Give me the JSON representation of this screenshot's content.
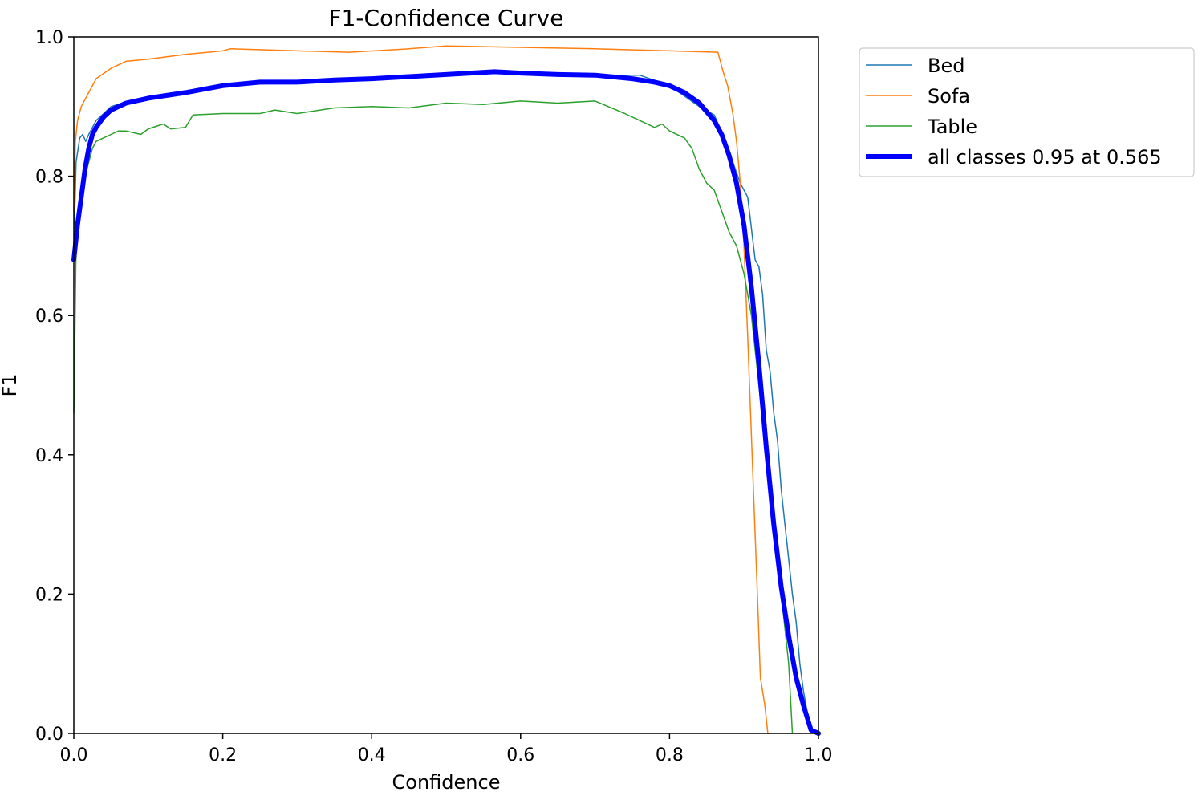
{
  "chart_data": {
    "type": "line",
    "title": "F1-Confidence Curve",
    "xlabel": "Confidence",
    "ylabel": "F1",
    "xlim": [
      0.0,
      1.0
    ],
    "ylim": [
      0.0,
      1.0
    ],
    "xticks": [
      "0.0",
      "0.2",
      "0.4",
      "0.6",
      "0.8",
      "1.0"
    ],
    "yticks": [
      "0.0",
      "0.2",
      "0.4",
      "0.6",
      "0.8",
      "1.0"
    ],
    "grid": false,
    "legend_position": "outside-top-right",
    "series": [
      {
        "name": "Bed",
        "color": "#1f77b4",
        "width": 1.5,
        "x": [
          0.0,
          0.003,
          0.008,
          0.012,
          0.016,
          0.02,
          0.03,
          0.05,
          0.08,
          0.1,
          0.15,
          0.2,
          0.3,
          0.4,
          0.5,
          0.55,
          0.6,
          0.7,
          0.76,
          0.8,
          0.82,
          0.84,
          0.86,
          0.875,
          0.885,
          0.895,
          0.905,
          0.915,
          0.92,
          0.925,
          0.93,
          0.935,
          0.94,
          0.945,
          0.95,
          0.955,
          0.96,
          0.965,
          0.97,
          0.975,
          0.98,
          0.985,
          0.99,
          1.0
        ],
        "y": [
          0.7,
          0.82,
          0.855,
          0.86,
          0.85,
          0.86,
          0.88,
          0.9,
          0.91,
          0.91,
          0.92,
          0.93,
          0.935,
          0.94,
          0.945,
          0.948,
          0.948,
          0.945,
          0.945,
          0.93,
          0.915,
          0.9,
          0.888,
          0.85,
          0.82,
          0.79,
          0.77,
          0.68,
          0.67,
          0.63,
          0.55,
          0.52,
          0.46,
          0.42,
          0.35,
          0.3,
          0.25,
          0.2,
          0.16,
          0.1,
          0.06,
          0.03,
          0.005,
          0.0
        ]
      },
      {
        "name": "Sofa",
        "color": "#ff7f0e",
        "width": 1.5,
        "x": [
          0.0,
          0.002,
          0.005,
          0.01,
          0.02,
          0.03,
          0.05,
          0.07,
          0.1,
          0.15,
          0.2,
          0.21,
          0.3,
          0.37,
          0.45,
          0.5,
          0.6,
          0.7,
          0.8,
          0.865,
          0.872,
          0.878,
          0.885,
          0.89,
          0.895,
          0.9,
          0.905,
          0.912,
          0.918,
          0.922,
          0.928,
          0.932,
          0.935
        ],
        "y": [
          0.75,
          0.85,
          0.88,
          0.9,
          0.92,
          0.94,
          0.955,
          0.965,
          0.968,
          0.975,
          0.98,
          0.983,
          0.98,
          0.978,
          0.983,
          0.987,
          0.985,
          0.983,
          0.98,
          0.978,
          0.95,
          0.93,
          0.89,
          0.85,
          0.79,
          0.7,
          0.57,
          0.37,
          0.2,
          0.08,
          0.04,
          0.0,
          0.0
        ]
      },
      {
        "name": "Table",
        "color": "#2ca02c",
        "width": 1.5,
        "x": [
          0.0,
          0.003,
          0.008,
          0.015,
          0.02,
          0.025,
          0.03,
          0.05,
          0.06,
          0.07,
          0.09,
          0.1,
          0.12,
          0.13,
          0.15,
          0.16,
          0.2,
          0.25,
          0.27,
          0.3,
          0.35,
          0.4,
          0.45,
          0.5,
          0.55,
          0.6,
          0.65,
          0.7,
          0.74,
          0.76,
          0.78,
          0.79,
          0.8,
          0.82,
          0.83,
          0.84,
          0.85,
          0.86,
          0.87,
          0.88,
          0.89,
          0.9,
          0.91,
          0.92,
          0.93,
          0.94,
          0.95,
          0.96,
          0.965
        ],
        "y": [
          0.46,
          0.7,
          0.76,
          0.8,
          0.82,
          0.84,
          0.85,
          0.86,
          0.865,
          0.865,
          0.86,
          0.868,
          0.875,
          0.868,
          0.87,
          0.888,
          0.89,
          0.89,
          0.895,
          0.89,
          0.898,
          0.9,
          0.898,
          0.905,
          0.903,
          0.908,
          0.905,
          0.908,
          0.89,
          0.88,
          0.87,
          0.875,
          0.865,
          0.855,
          0.84,
          0.81,
          0.79,
          0.78,
          0.75,
          0.72,
          0.7,
          0.66,
          0.6,
          0.5,
          0.4,
          0.3,
          0.2,
          0.1,
          0.0
        ]
      },
      {
        "name": "all classes 0.95 at 0.565",
        "color": "#0000ff",
        "width": 6,
        "x": [
          0.0,
          0.005,
          0.01,
          0.015,
          0.02,
          0.025,
          0.03,
          0.04,
          0.05,
          0.07,
          0.1,
          0.15,
          0.2,
          0.25,
          0.3,
          0.35,
          0.4,
          0.45,
          0.5,
          0.565,
          0.6,
          0.65,
          0.7,
          0.75,
          0.78,
          0.8,
          0.82,
          0.84,
          0.86,
          0.87,
          0.88,
          0.89,
          0.9,
          0.91,
          0.92,
          0.93,
          0.94,
          0.95,
          0.96,
          0.97,
          0.98,
          0.99,
          1.0
        ],
        "y": [
          0.68,
          0.73,
          0.77,
          0.81,
          0.84,
          0.86,
          0.87,
          0.885,
          0.895,
          0.905,
          0.912,
          0.92,
          0.93,
          0.935,
          0.935,
          0.938,
          0.94,
          0.943,
          0.946,
          0.95,
          0.948,
          0.946,
          0.945,
          0.94,
          0.935,
          0.93,
          0.92,
          0.905,
          0.88,
          0.86,
          0.83,
          0.79,
          0.73,
          0.64,
          0.53,
          0.41,
          0.3,
          0.21,
          0.14,
          0.08,
          0.04,
          0.005,
          0.0
        ]
      }
    ]
  }
}
